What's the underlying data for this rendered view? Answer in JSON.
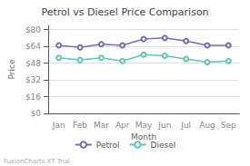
{
  "chart_data": {
    "type": "line",
    "title": "Petrol vs Diesel Price Comparison",
    "x_label": "Month",
    "y_label": "Price",
    "categories": [
      "Jan",
      "Feb",
      "Mar",
      "Apr",
      "May",
      "Jun",
      "Jul",
      "Aug",
      "Sep"
    ],
    "series": [
      {
        "name": "Petrol",
        "color": "#7b6bb5",
        "values": [
          65,
          63,
          66,
          65,
          71,
          72,
          69,
          65,
          65
        ]
      },
      {
        "name": "Diesel",
        "color": "#5ec8b0",
        "values": [
          53,
          51,
          53,
          50,
          56,
          55,
          52,
          49,
          50
        ]
      }
    ],
    "ylim": [
      0,
      84
    ],
    "yticks": [
      {
        "value": 0,
        "label": "$0"
      },
      {
        "value": 16,
        "label": "$16"
      },
      {
        "value": 32,
        "label": "$32"
      },
      {
        "value": 48,
        "label": "$48"
      },
      {
        "value": 64,
        "label": "$64"
      },
      {
        "value": 80,
        "label": "$80"
      }
    ],
    "grid": true,
    "legend": "bottom",
    "marker": "circle",
    "annotations": [
      "FusionCharts XT Trial"
    ]
  }
}
